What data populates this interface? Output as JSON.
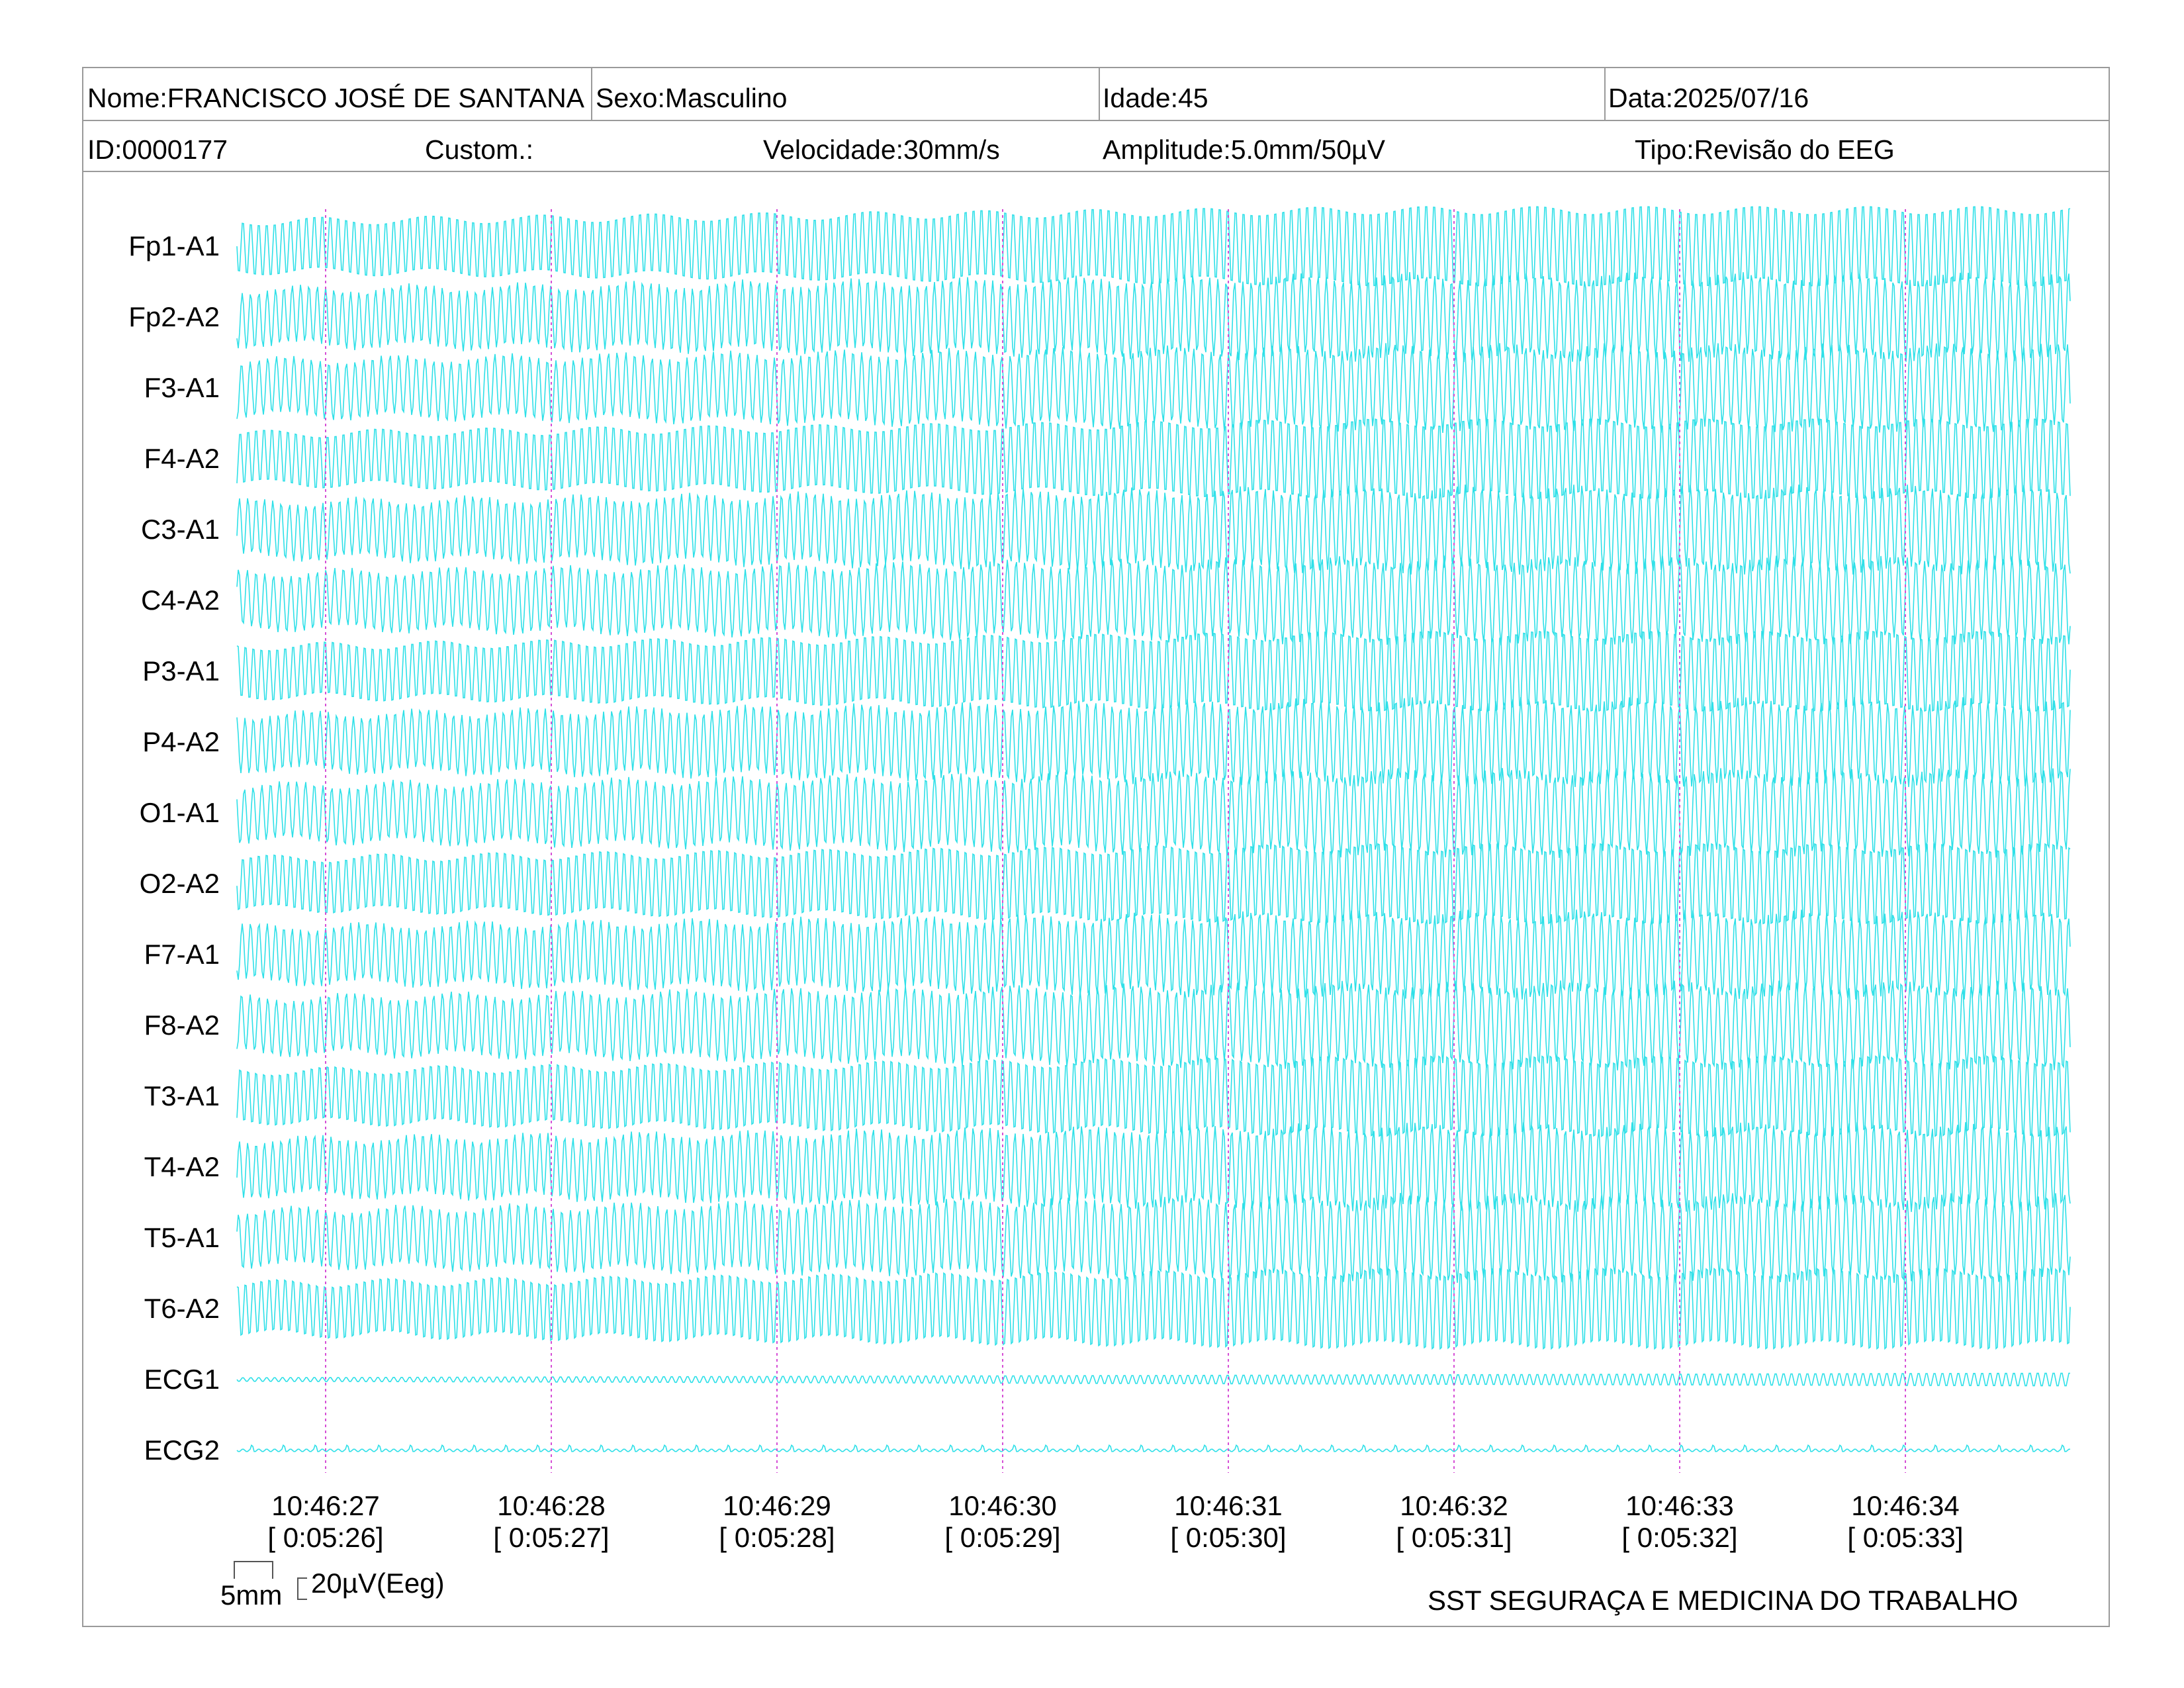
{
  "header": {
    "row1": {
      "name": "Nome:FRANCISCO JOSÉ DE SANTANA",
      "sex": "Sexo:Masculino",
      "age": "Idade:45",
      "date": "Data:2025/07/16"
    },
    "row2": {
      "id": "ID:0000177",
      "custom": "Custom.:",
      "speed": "Velocidade:30mm/s",
      "amplitude": "Amplitude:5.0mm/50µV",
      "type": "Tipo:Revisão do EEG"
    }
  },
  "channels": [
    "Fp1-A1",
    "Fp2-A2",
    "F3-A1",
    "F4-A2",
    "C3-A1",
    "C4-A2",
    "P3-A1",
    "P4-A2",
    "O1-A1",
    "O2-A2",
    "F7-A1",
    "F8-A2",
    "T3-A1",
    "T4-A2",
    "T5-A1",
    "T6-A2",
    "ECG1",
    "ECG2"
  ],
  "time_markers": [
    {
      "clock": "10:46:27",
      "elapsed": "[ 0:05:26]"
    },
    {
      "clock": "10:46:28",
      "elapsed": "[ 0:05:27]"
    },
    {
      "clock": "10:46:29",
      "elapsed": "[ 0:05:28]"
    },
    {
      "clock": "10:46:30",
      "elapsed": "[ 0:05:29]"
    },
    {
      "clock": "10:46:31",
      "elapsed": "[ 0:05:30]"
    },
    {
      "clock": "10:46:32",
      "elapsed": "[ 0:05:31]"
    },
    {
      "clock": "10:46:33",
      "elapsed": "[ 0:05:32]"
    },
    {
      "clock": "10:46:34",
      "elapsed": "[ 0:05:33]"
    }
  ],
  "scale": {
    "time": "5mm",
    "amplitude": "20µV(Eeg)"
  },
  "footer": "SST SEGURAÇA E MEDICINA DO TRABALHO",
  "colors": {
    "trace": "#2fe0e8",
    "marker": "#d64fd6",
    "border": "#9a9a9a"
  }
}
